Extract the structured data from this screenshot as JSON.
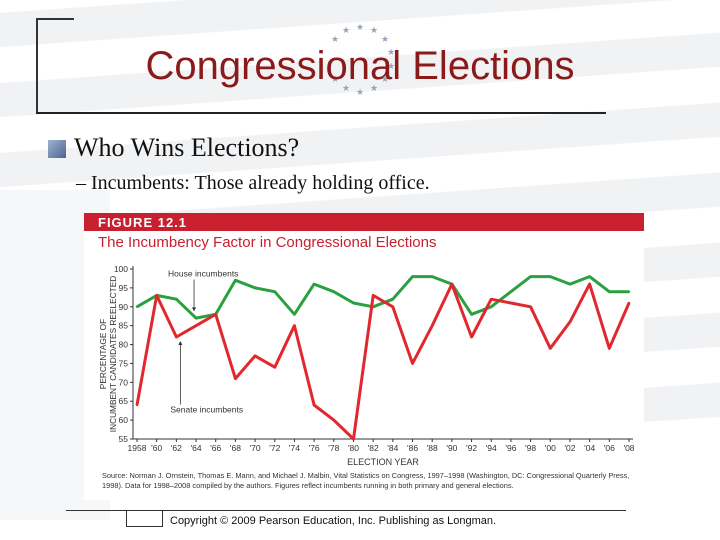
{
  "slide": {
    "title": "Congressional Elections",
    "bullet_1": "Who Wins Elections?",
    "bullet_2": "– Incumbents: Those already holding office.",
    "copyright": "Copyright © 2009 Pearson Education, Inc. Publishing as Longman."
  },
  "colors": {
    "title": "#8b1a1a",
    "house": "#2aa040",
    "senate": "#e0282e",
    "figure_band": "#c8202e"
  },
  "chart_data": {
    "type": "line",
    "figure_label": "FIGURE 12.1",
    "title": "The Incumbency Factor in Congressional Elections",
    "xlabel": "ELECTION YEAR",
    "ylabel": "PERCENTAGE OF INCUMBENT CANDIDATES REELECTED",
    "ylim": [
      55,
      100
    ],
    "yticks": [
      55,
      60,
      65,
      70,
      75,
      80,
      85,
      90,
      95,
      100
    ],
    "x": [
      "1958",
      "'60",
      "'62",
      "'64",
      "'66",
      "'68",
      "'70",
      "'72",
      "'74",
      "'76",
      "'78",
      "'80",
      "'82",
      "'84",
      "'86",
      "'88",
      "'90",
      "'92",
      "'94",
      "'96",
      "'98",
      "'00",
      "'02",
      "'04",
      "'06",
      "'08"
    ],
    "series": [
      {
        "name": "House incumbents",
        "color": "#2aa040",
        "values": [
          90,
          93,
          92,
          87,
          88,
          97,
          95,
          94,
          88,
          96,
          94,
          91,
          90,
          92,
          98,
          98,
          96,
          88,
          90,
          94,
          98,
          98,
          96,
          98,
          94,
          94
        ]
      },
      {
        "name": "Senate incumbents",
        "color": "#e0282e",
        "values": [
          64,
          93,
          82,
          85,
          88,
          71,
          77,
          74,
          85,
          64,
          60,
          55,
          93,
          90,
          75,
          85,
          96,
          82,
          92,
          91,
          90,
          79,
          86,
          96,
          79,
          91
        ]
      }
    ],
    "annotations": [
      "House incumbents",
      "Senate incumbents"
    ],
    "grid": false,
    "source": "Source: Norman J. Ornstein, Thomas E. Mann, and Michael J. Malbin, Vital Statistics on Congress, 1997–1998 (Washington, DC: Congressional Quarterly Press, 1998). Data for 1998–2008 compiled by the authors. Figures reflect incumbents running in both primary and general elections."
  }
}
